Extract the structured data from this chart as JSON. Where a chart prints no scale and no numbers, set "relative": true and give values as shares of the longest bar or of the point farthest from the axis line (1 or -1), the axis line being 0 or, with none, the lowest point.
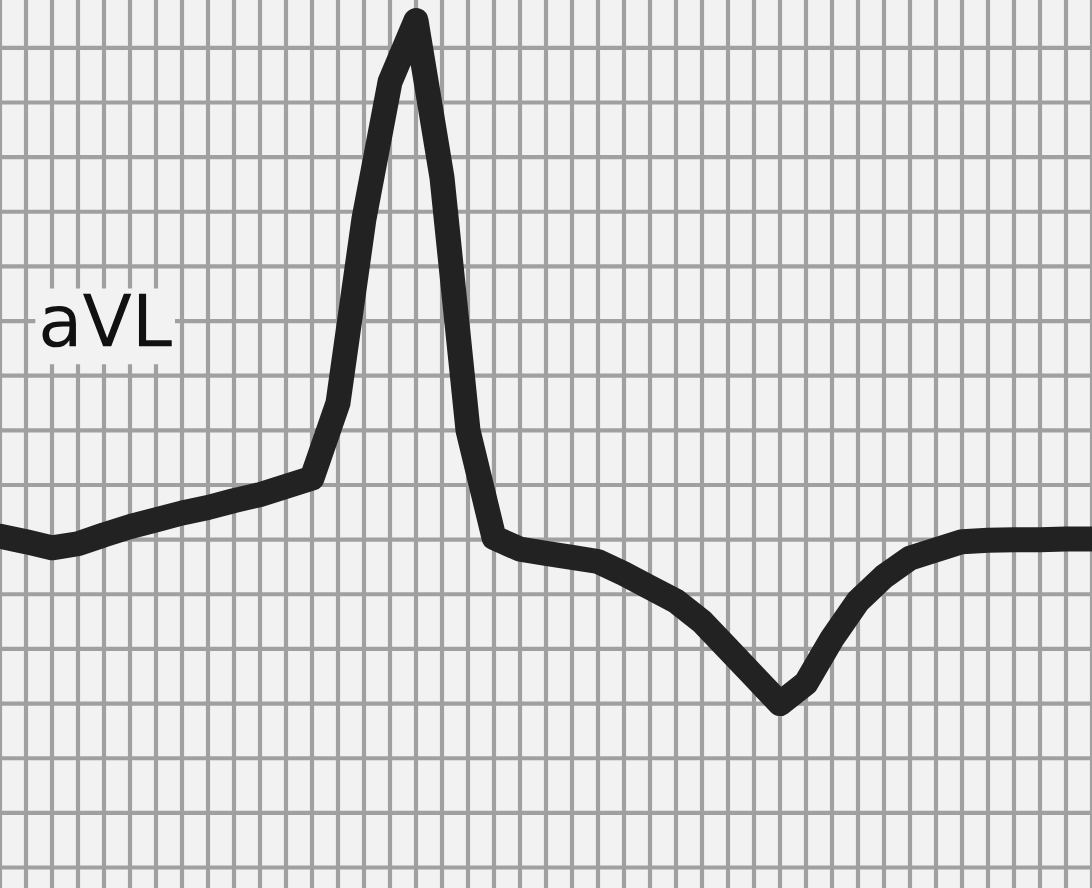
{
  "chart_data": {
    "type": "line",
    "relative": true,
    "grid": true,
    "line_style": "solid",
    "annotations": [
      "aVL"
    ],
    "categories": [
      null,
      null,
      null,
      null,
      null,
      null,
      null,
      null,
      null,
      null,
      null,
      null,
      null,
      null,
      null,
      null,
      null,
      null,
      null,
      null,
      null,
      null,
      null,
      null,
      null,
      null,
      null,
      null,
      null,
      null,
      null,
      null,
      null,
      null,
      null,
      null,
      null,
      null,
      null,
      null,
      null,
      null,
      null
    ],
    "series": [
      {
        "color": "#222222",
        "values": [
          0.245,
          0.237,
          0.228,
          0.234,
          0.247,
          0.259,
          0.269,
          0.279,
          0.287,
          0.297,
          0.306,
          0.318,
          0.33,
          0.44,
          0.71,
          0.91,
          1.0,
          0.77,
          0.4,
          0.243,
          0.226,
          0.22,
          0.214,
          0.208,
          0.19,
          0.17,
          0.15,
          0.12,
          0.08,
          0.04,
          0.0,
          0.03,
          0.095,
          0.15,
          0.186,
          0.213,
          0.225,
          0.237,
          0.239,
          0.24,
          0.24,
          0.241,
          0.241
        ]
      }
    ]
  }
}
